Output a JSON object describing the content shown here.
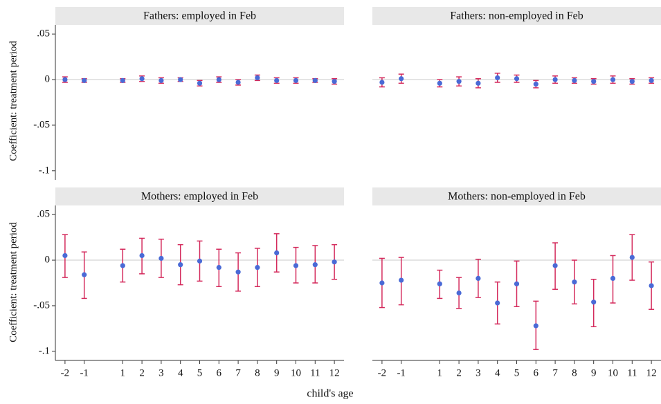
{
  "chart_data": {
    "type": "errorbar",
    "x_label": "child's age",
    "y_label": "Coefficient: treatment period",
    "xlim": [
      -2.5,
      12.5
    ],
    "ylim": [
      -0.11,
      0.06
    ],
    "xticks": [
      -2,
      -1,
      1,
      2,
      3,
      4,
      5,
      6,
      7,
      8,
      9,
      10,
      11,
      12
    ],
    "yticks": [
      {
        "value": 0.05,
        "label": ".05"
      },
      0,
      {
        "value": -0.05,
        "label": "-.05"
      },
      {
        "value": -0.1,
        "label": "-.1"
      }
    ],
    "point_color": "#4a6ad6",
    "ci_color": "#d42a5c",
    "panels": [
      {
        "title": "Fathers: employed in Feb",
        "x": [
          -2,
          -1,
          1,
          2,
          3,
          4,
          5,
          6,
          7,
          8,
          9,
          10,
          11,
          12
        ],
        "values": [
          0,
          -0.001,
          -0.001,
          0.001,
          -0.001,
          0,
          -0.004,
          0,
          -0.003,
          0.002,
          -0.001,
          -0.001,
          -0.001,
          -0.002
        ],
        "lower": [
          -0.003,
          -0.003,
          -0.003,
          -0.002,
          -0.004,
          -0.002,
          -0.007,
          -0.003,
          -0.006,
          -0.001,
          -0.004,
          -0.004,
          -0.003,
          -0.005
        ],
        "upper": [
          0.003,
          0.001,
          0.001,
          0.004,
          0.002,
          0.002,
          -0.001,
          0.003,
          0,
          0.005,
          0.002,
          0.002,
          0.001,
          0.001
        ]
      },
      {
        "title": "Fathers: non-employed in Feb",
        "x": [
          -2,
          -1,
          1,
          2,
          3,
          4,
          5,
          6,
          7,
          8,
          9,
          10,
          11,
          12
        ],
        "values": [
          -0.003,
          0.001,
          -0.004,
          -0.002,
          -0.004,
          0.002,
          0.001,
          -0.005,
          0,
          -0.001,
          -0.002,
          0,
          -0.002,
          -0.001
        ],
        "lower": [
          -0.008,
          -0.004,
          -0.008,
          -0.007,
          -0.009,
          -0.003,
          -0.003,
          -0.009,
          -0.004,
          -0.004,
          -0.005,
          -0.004,
          -0.005,
          -0.004
        ],
        "upper": [
          0.002,
          0.006,
          0,
          0.003,
          0.001,
          0.007,
          0.005,
          -0.001,
          0.004,
          0.002,
          0.001,
          0.004,
          0.001,
          0.002
        ]
      },
      {
        "title": "Mothers: employed in Feb",
        "x": [
          -2,
          -1,
          1,
          2,
          3,
          4,
          5,
          6,
          7,
          8,
          9,
          10,
          11,
          12
        ],
        "values": [
          0.005,
          -0.016,
          -0.006,
          0.005,
          0.002,
          -0.005,
          -0.001,
          -0.008,
          -0.013,
          -0.008,
          0.008,
          -0.006,
          -0.005,
          -0.002
        ],
        "lower": [
          -0.019,
          -0.042,
          -0.024,
          -0.015,
          -0.019,
          -0.027,
          -0.023,
          -0.029,
          -0.034,
          -0.029,
          -0.013,
          -0.025,
          -0.025,
          -0.021
        ],
        "upper": [
          0.028,
          0.009,
          0.012,
          0.024,
          0.023,
          0.017,
          0.021,
          0.012,
          0.008,
          0.013,
          0.029,
          0.014,
          0.016,
          0.017
        ]
      },
      {
        "title": "Mothers: non-employed in Feb",
        "x": [
          -2,
          -1,
          1,
          2,
          3,
          4,
          5,
          6,
          7,
          8,
          9,
          10,
          11,
          12
        ],
        "values": [
          -0.025,
          -0.022,
          -0.026,
          -0.036,
          -0.02,
          -0.047,
          -0.026,
          -0.072,
          -0.006,
          -0.024,
          -0.046,
          -0.02,
          0.003,
          -0.028
        ],
        "lower": [
          -0.052,
          -0.049,
          -0.042,
          -0.053,
          -0.041,
          -0.07,
          -0.051,
          -0.098,
          -0.032,
          -0.048,
          -0.073,
          -0.047,
          -0.022,
          -0.054
        ],
        "upper": [
          0.002,
          0.003,
          -0.011,
          -0.019,
          0.001,
          -0.024,
          -0.001,
          -0.045,
          0.019,
          0,
          -0.021,
          0.005,
          0.028,
          -0.002
        ]
      }
    ]
  }
}
